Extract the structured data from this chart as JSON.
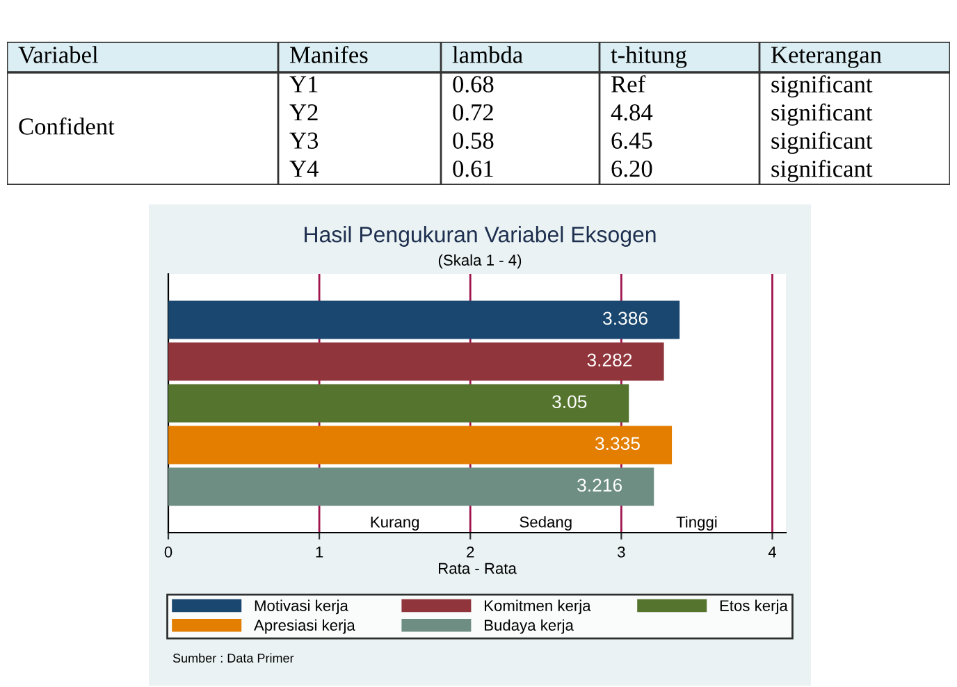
{
  "chart_data": [
    {
      "type": "other",
      "annotations": [
        "Variabel",
        "Manifes",
        "lambda",
        "t-hitung",
        "Keterangan",
        "Confident",
        "Y1",
        "0.68",
        "Ref",
        "significant",
        "Y2",
        "0.72",
        "4.84",
        "significant",
        "Y3",
        "0.58",
        "6.45",
        "significant",
        "Y4",
        "0.61",
        "6.20",
        "significant"
      ]
    },
    {
      "type": "bar",
      "orientation": "horizontal",
      "title": "Hasil Pengukuran Variabel Eksogen",
      "subtitle": "(Skala 1 - 4)",
      "xlabel": "Rata - Rata",
      "categories": [
        null
      ],
      "series": [
        {
          "name": "Motivasi kerja",
          "color": "#1a476f",
          "values": [
            3.386
          ]
        },
        {
          "name": "Komitmen kerja",
          "color": "#90353b",
          "values": [
            3.282
          ]
        },
        {
          "name": "Etos kerja",
          "color": "#55752f",
          "values": [
            3.05
          ]
        },
        {
          "name": "Apresiasi kerja",
          "color": "#e37e00",
          "values": [
            3.335
          ]
        },
        {
          "name": "Budaya kerja",
          "color": "#6e8e84",
          "values": [
            3.216
          ]
        }
      ],
      "data_labels": true,
      "xlim": [
        0,
        4.09
      ],
      "xticks": [
        0,
        1,
        2,
        3,
        4
      ],
      "ref_lines": [
        {
          "axis": "x",
          "value": 1,
          "color": "#a0144d"
        },
        {
          "axis": "x",
          "value": 2,
          "color": "#a0144d"
        },
        {
          "axis": "x",
          "value": 3,
          "color": "#a0144d"
        },
        {
          "axis": "x",
          "value": 4,
          "color": "#a0144d"
        }
      ],
      "grid": false,
      "legend": "bottom",
      "annotations": [
        "Kurang",
        "Sedang",
        "Tinggi",
        "Sumber : Data Primer"
      ]
    }
  ]
}
